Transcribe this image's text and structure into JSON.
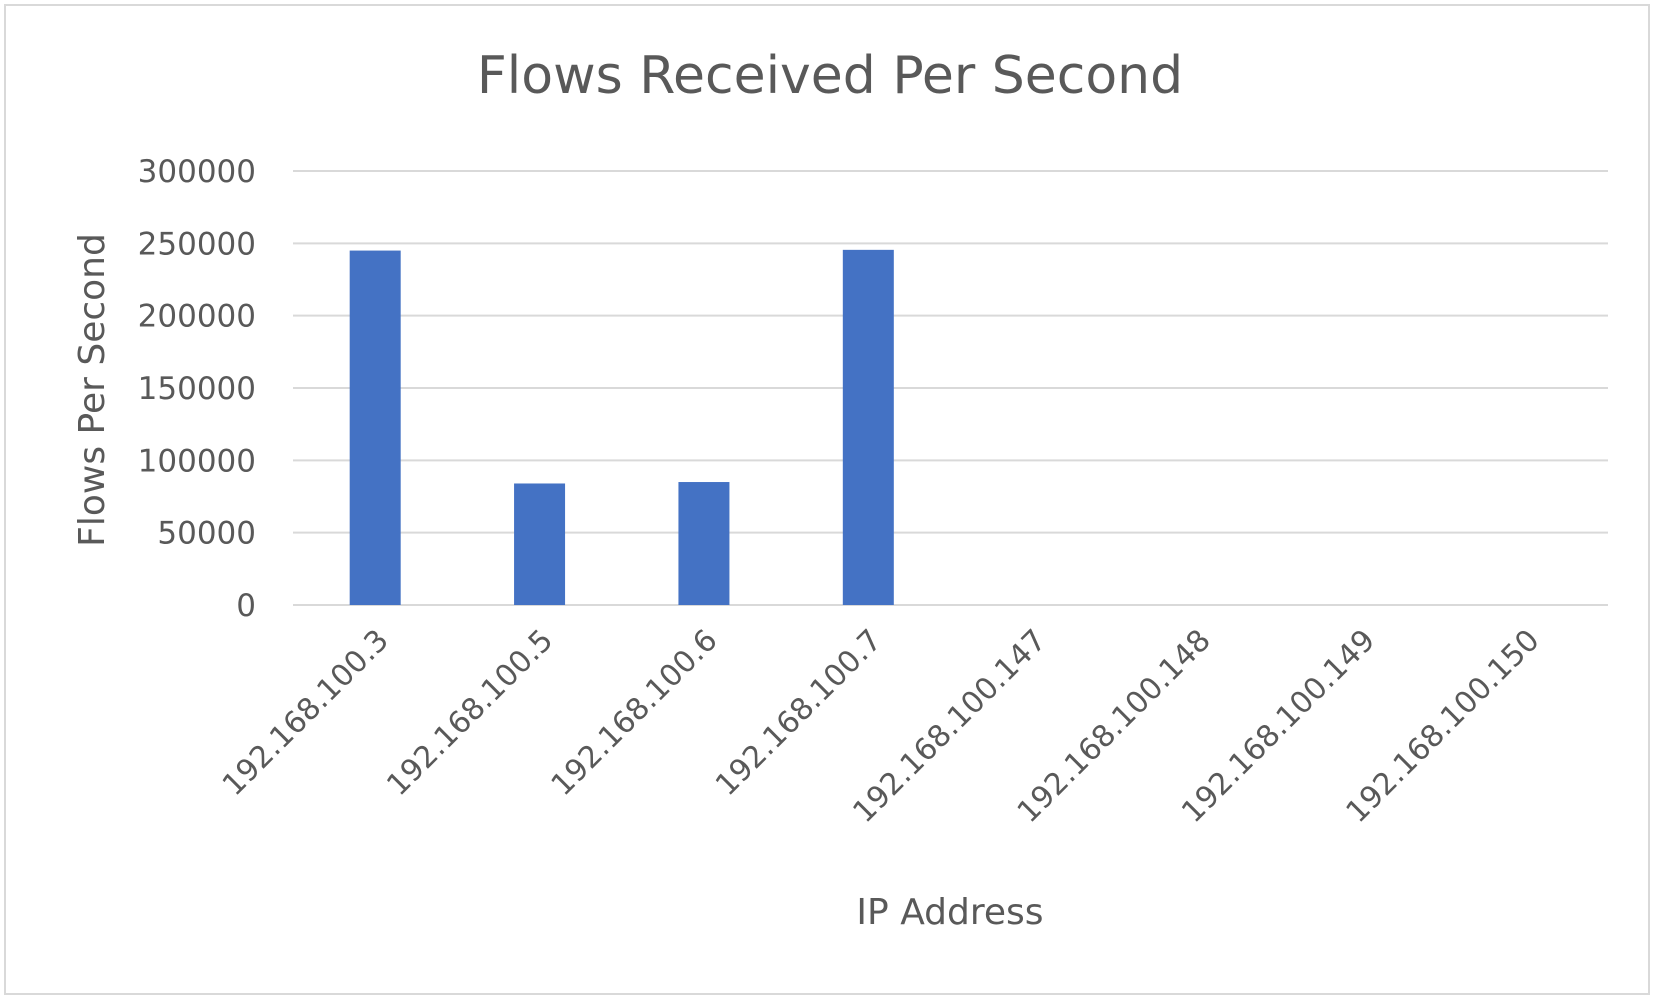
{
  "chart_data": {
    "type": "bar",
    "title": "Flows Received Per Second",
    "xlabel": "IP Address",
    "ylabel": "Flows Per Second",
    "ylim": [
      0,
      300000
    ],
    "yticks": [
      0,
      50000,
      100000,
      150000,
      200000,
      250000,
      300000
    ],
    "grid": true,
    "legend": "none",
    "categories": [
      "192.168.100.3",
      "192.168.100.5",
      "192.168.100.6",
      "192.168.100.7",
      "192.168.100.147",
      "192.168.100.148",
      "192.168.100.149",
      "192.168.100.150"
    ],
    "values": [
      245000,
      84000,
      85000,
      245500,
      0,
      0,
      0,
      0
    ],
    "colors": {
      "bar": "#4472C4",
      "grid": "#d9d9d9",
      "text": "#595959"
    }
  }
}
